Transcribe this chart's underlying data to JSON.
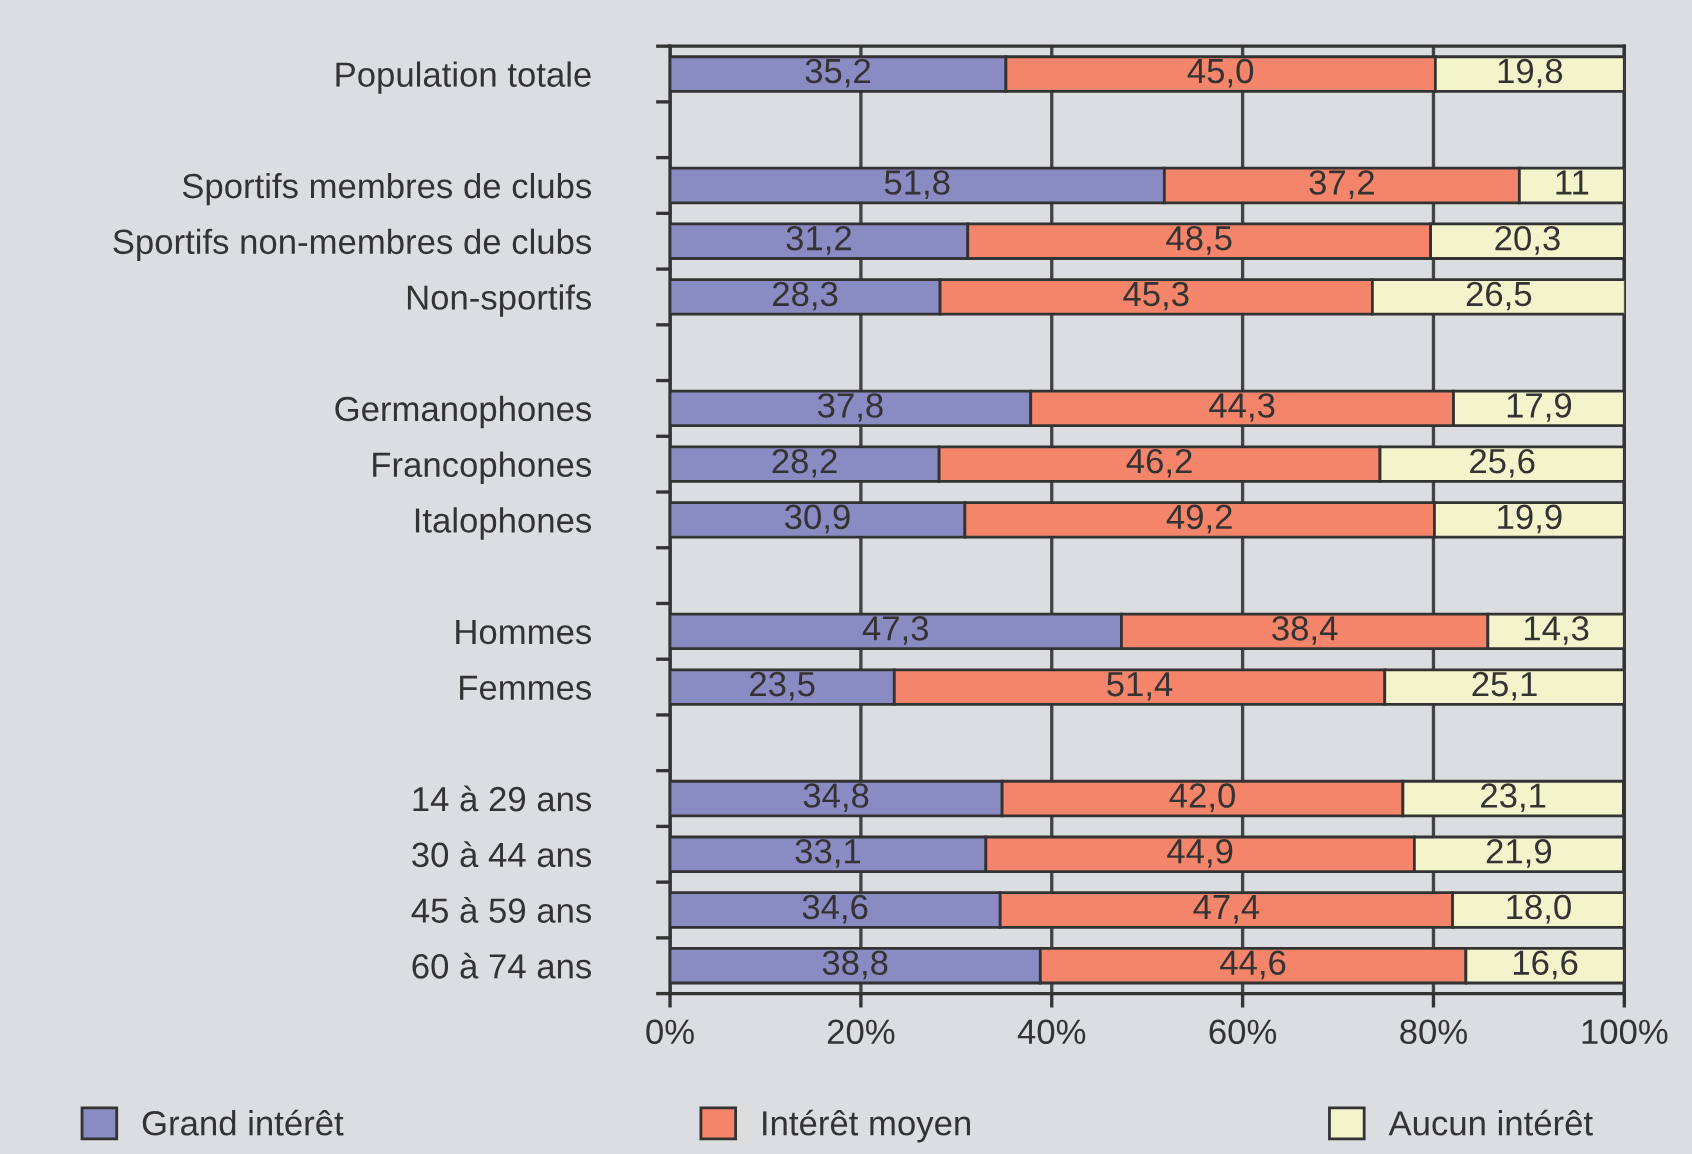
{
  "chart_data": {
    "type": "bar",
    "orientation": "horizontal",
    "stacked": true,
    "categories": [
      "Population totale",
      null,
      "Sportifs membres de clubs",
      "Sportifs non-membres de clubs",
      "Non-sportifs",
      null,
      "Germanophones",
      "Francophones",
      "Italophones",
      null,
      "Hommes",
      "Femmes",
      null,
      "14 à 29 ans",
      "30 à 44 ans",
      "45 à 59 ans",
      "60 à 74 ans"
    ],
    "series": [
      {
        "name": "Grand intérêt",
        "color": "#8b8bc4",
        "values": [
          35.2,
          null,
          51.8,
          31.2,
          28.3,
          null,
          37.8,
          28.2,
          30.9,
          null,
          47.3,
          23.5,
          null,
          34.8,
          33.1,
          34.6,
          38.8
        ],
        "value_labels": [
          "35,2",
          null,
          "51,8",
          "31,2",
          "28,3",
          null,
          "37,8",
          "28,2",
          "30,9",
          null,
          "47,3",
          "23,5",
          null,
          "34,8",
          "33,1",
          "34,6",
          "38,8"
        ]
      },
      {
        "name": "Intérêt moyen",
        "color": "#f4846a",
        "values": [
          45.0,
          null,
          37.2,
          48.5,
          45.3,
          null,
          44.3,
          46.2,
          49.2,
          null,
          38.4,
          51.4,
          null,
          42.0,
          44.9,
          47.4,
          44.6
        ],
        "value_labels": [
          "45,0",
          null,
          "37,2",
          "48,5",
          "45,3",
          null,
          "44,3",
          "46,2",
          "49,2",
          null,
          "38,4",
          "51,4",
          null,
          "42,0",
          "44,9",
          "47,4",
          "44,6"
        ]
      },
      {
        "name": "Aucun intérêt",
        "color": "#f3f4cc",
        "values": [
          19.8,
          null,
          11,
          20.3,
          26.5,
          null,
          17.9,
          25.6,
          19.9,
          null,
          14.3,
          25.1,
          null,
          23.1,
          21.9,
          18.0,
          16.6
        ],
        "value_labels": [
          "19,8",
          null,
          "11",
          "20,3",
          "26,5",
          null,
          "17,9",
          "25,6",
          "19,9",
          null,
          "14,3",
          "25,1",
          null,
          "23,1",
          "21,9",
          "18,0",
          "16,6"
        ]
      }
    ],
    "xlim": [
      0,
      100
    ],
    "xticks": [
      {
        "value": 0,
        "label": "0%"
      },
      {
        "value": 20,
        "label": "20%"
      },
      {
        "value": 40,
        "label": "40%"
      },
      {
        "value": 60,
        "label": "60%"
      },
      {
        "value": 80,
        "label": "80%"
      },
      {
        "value": 100,
        "label": "100%"
      }
    ],
    "grid": "x",
    "legend": "bottom"
  }
}
